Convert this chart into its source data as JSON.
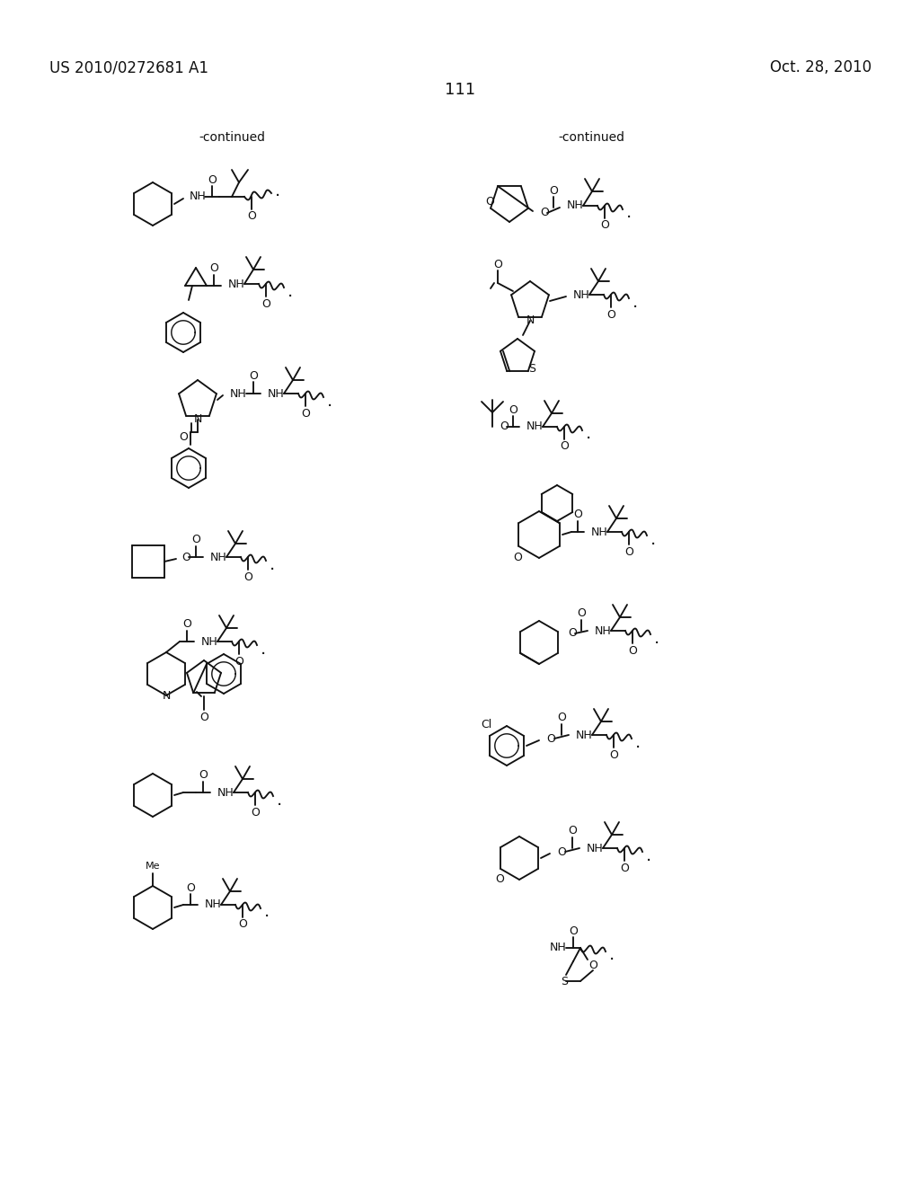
{
  "header_left": "US 2010/0272681 A1",
  "header_right": "Oct. 28, 2010",
  "page_number": "111",
  "continued_left": "-continued",
  "continued_right": "-continued",
  "bg": "#ffffff",
  "fg": "#111111"
}
